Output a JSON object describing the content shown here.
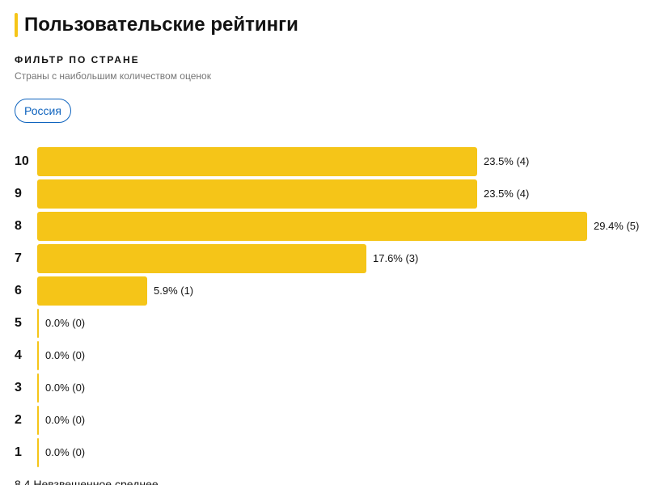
{
  "header": {
    "title": "Пользовательские рейтинги",
    "accent_color": "#f5c518"
  },
  "filter": {
    "title": "ФИЛЬТР ПО СТРАНЕ",
    "subtitle": "Страны с наибольшим количеством оценок",
    "selected_country": "Россия"
  },
  "ratings": {
    "max_percent": 29.4,
    "rows": [
      {
        "rating": "10",
        "percent": 23.5,
        "label": "23.5% (4)"
      },
      {
        "rating": "9",
        "percent": 23.5,
        "label": "23.5% (4)"
      },
      {
        "rating": "8",
        "percent": 29.4,
        "label": "29.4% (5)"
      },
      {
        "rating": "7",
        "percent": 17.6,
        "label": "17.6% (3)"
      },
      {
        "rating": "6",
        "percent": 5.9,
        "label": "5.9% (1)"
      },
      {
        "rating": "5",
        "percent": 0,
        "label": "0.0% (0)"
      },
      {
        "rating": "4",
        "percent": 0,
        "label": "0.0% (0)"
      },
      {
        "rating": "3",
        "percent": 0,
        "label": "0.0% (0)"
      },
      {
        "rating": "2",
        "percent": 0,
        "label": "0.0% (0)"
      },
      {
        "rating": "1",
        "percent": 0,
        "label": "0.0% (0)"
      }
    ]
  },
  "footer": {
    "summary": "8.4 Невзвешенное среднее"
  }
}
